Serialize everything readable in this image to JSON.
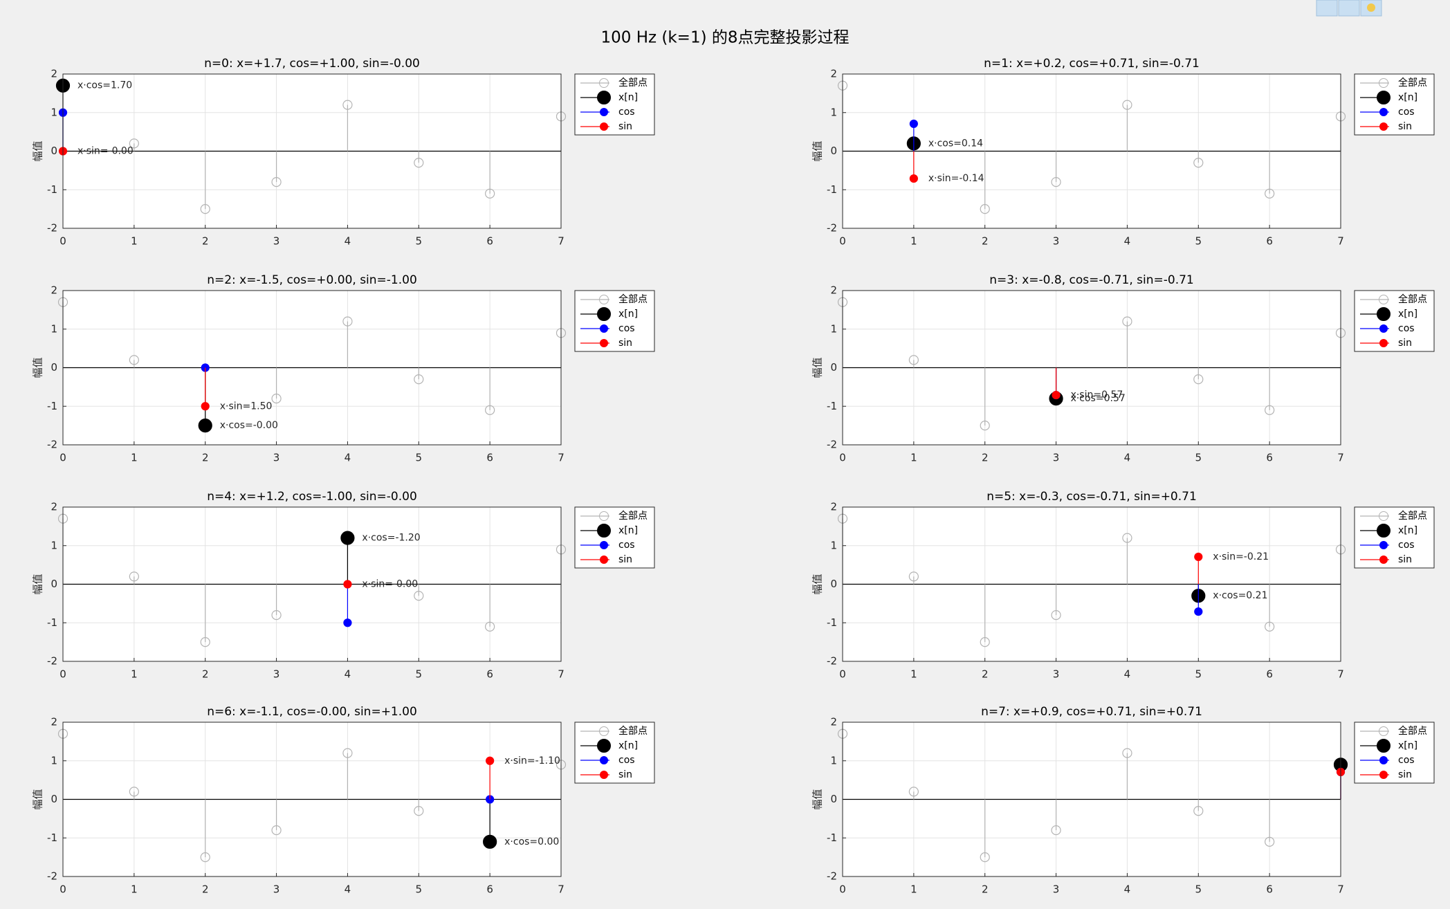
{
  "title": "100 Hz (k=1) 的8点完整投影过程",
  "chart_data": [
    {
      "type": "stem",
      "title": "n=0: x=+1.7, cos=+1.00, sin=-0.00",
      "ylabel": "幅值",
      "x": [
        0,
        1,
        2,
        3,
        4,
        5,
        6,
        7
      ],
      "xlim": [
        0,
        7
      ],
      "ylim": [
        -2,
        2
      ],
      "xticks": [
        0,
        1,
        2,
        3,
        4,
        5,
        6,
        7
      ],
      "yticks": [
        -2,
        -1,
        0,
        1,
        2
      ],
      "grid": true,
      "legend": "outside-right",
      "series": [
        {
          "name": "全部点",
          "color": "#b3b3b3",
          "values": [
            1.7,
            0.2,
            -1.5,
            -0.8,
            1.2,
            -0.3,
            -1.1,
            0.9
          ]
        },
        {
          "name": "x[n]",
          "color": "#000000",
          "values": [
            1.7,
            null,
            null,
            null,
            null,
            null,
            null,
            null
          ]
        },
        {
          "name": "cos",
          "color": "#0000ff",
          "values": [
            1,
            null,
            null,
            null,
            null,
            null,
            null,
            null
          ]
        },
        {
          "name": "sin",
          "color": "#ff0000",
          "values": [
            0,
            null,
            null,
            null,
            null,
            null,
            null,
            null
          ]
        }
      ],
      "cos_label": "x·cos=1.70",
      "sin_label": "x·sin=-0.00"
    },
    {
      "type": "stem",
      "title": "n=1: x=+0.2, cos=+0.71, sin=-0.71",
      "ylabel": "幅值",
      "x": [
        0,
        1,
        2,
        3,
        4,
        5,
        6,
        7
      ],
      "xlim": [
        0,
        7
      ],
      "ylim": [
        -2,
        2
      ],
      "xticks": [
        0,
        1,
        2,
        3,
        4,
        5,
        6,
        7
      ],
      "yticks": [
        -2,
        -1,
        0,
        1,
        2
      ],
      "grid": true,
      "legend": "outside-right",
      "series": [
        {
          "name": "全部点",
          "color": "#b3b3b3",
          "values": [
            1.7,
            0.2,
            -1.5,
            -0.8,
            1.2,
            -0.3,
            -1.1,
            0.9
          ]
        },
        {
          "name": "x[n]",
          "color": "#000000",
          "values": [
            null,
            0.2,
            null,
            null,
            null,
            null,
            null,
            null
          ]
        },
        {
          "name": "cos",
          "color": "#0000ff",
          "values": [
            null,
            0.71,
            null,
            null,
            null,
            null,
            null,
            null
          ]
        },
        {
          "name": "sin",
          "color": "#ff0000",
          "values": [
            null,
            -0.71,
            null,
            null,
            null,
            null,
            null,
            null
          ]
        }
      ],
      "cos_label": "x·cos=0.14",
      "sin_label": "x·sin=-0.14"
    },
    {
      "type": "stem",
      "title": "n=2: x=-1.5, cos=+0.00, sin=-1.00",
      "ylabel": "幅值",
      "x": [
        0,
        1,
        2,
        3,
        4,
        5,
        6,
        7
      ],
      "xlim": [
        0,
        7
      ],
      "ylim": [
        -2,
        2
      ],
      "xticks": [
        0,
        1,
        2,
        3,
        4,
        5,
        6,
        7
      ],
      "yticks": [
        -2,
        -1,
        0,
        1,
        2
      ],
      "grid": true,
      "legend": "outside-right",
      "series": [
        {
          "name": "全部点",
          "color": "#b3b3b3",
          "values": [
            1.7,
            0.2,
            -1.5,
            -0.8,
            1.2,
            -0.3,
            -1.1,
            0.9
          ]
        },
        {
          "name": "x[n]",
          "color": "#000000",
          "values": [
            null,
            null,
            -1.5,
            null,
            null,
            null,
            null,
            null
          ]
        },
        {
          "name": "cos",
          "color": "#0000ff",
          "values": [
            null,
            null,
            0,
            null,
            null,
            null,
            null,
            null
          ]
        },
        {
          "name": "sin",
          "color": "#ff0000",
          "values": [
            null,
            null,
            -1,
            null,
            null,
            null,
            null,
            null
          ]
        }
      ],
      "cos_label": "x·cos=-0.00",
      "sin_label": "x·sin=1.50"
    },
    {
      "type": "stem",
      "title": "n=3: x=-0.8, cos=-0.71, sin=-0.71",
      "ylabel": "幅值",
      "x": [
        0,
        1,
        2,
        3,
        4,
        5,
        6,
        7
      ],
      "xlim": [
        0,
        7
      ],
      "ylim": [
        -2,
        2
      ],
      "xticks": [
        0,
        1,
        2,
        3,
        4,
        5,
        6,
        7
      ],
      "yticks": [
        -2,
        -1,
        0,
        1,
        2
      ],
      "grid": true,
      "legend": "outside-right",
      "series": [
        {
          "name": "全部点",
          "color": "#b3b3b3",
          "values": [
            1.7,
            0.2,
            -1.5,
            -0.8,
            1.2,
            -0.3,
            -1.1,
            0.9
          ]
        },
        {
          "name": "x[n]",
          "color": "#000000",
          "values": [
            null,
            null,
            null,
            -0.8,
            null,
            null,
            null,
            null
          ]
        },
        {
          "name": "cos",
          "color": "#0000ff",
          "values": [
            null,
            null,
            null,
            -0.71,
            null,
            null,
            null,
            null
          ]
        },
        {
          "name": "sin",
          "color": "#ff0000",
          "values": [
            null,
            null,
            null,
            -0.71,
            null,
            null,
            null,
            null
          ]
        }
      ],
      "cos_label": "x·cos=0.57",
      "sin_label": "x·sin=0.57"
    },
    {
      "type": "stem",
      "title": "n=4: x=+1.2, cos=-1.00, sin=-0.00",
      "ylabel": "幅值",
      "x": [
        0,
        1,
        2,
        3,
        4,
        5,
        6,
        7
      ],
      "xlim": [
        0,
        7
      ],
      "ylim": [
        -2,
        2
      ],
      "xticks": [
        0,
        1,
        2,
        3,
        4,
        5,
        6,
        7
      ],
      "yticks": [
        -2,
        -1,
        0,
        1,
        2
      ],
      "grid": true,
      "legend": "outside-right",
      "series": [
        {
          "name": "全部点",
          "color": "#b3b3b3",
          "values": [
            1.7,
            0.2,
            -1.5,
            -0.8,
            1.2,
            -0.3,
            -1.1,
            0.9
          ]
        },
        {
          "name": "x[n]",
          "color": "#000000",
          "values": [
            null,
            null,
            null,
            null,
            1.2,
            null,
            null,
            null
          ]
        },
        {
          "name": "cos",
          "color": "#0000ff",
          "values": [
            null,
            null,
            null,
            null,
            -1,
            null,
            null,
            null
          ]
        },
        {
          "name": "sin",
          "color": "#ff0000",
          "values": [
            null,
            null,
            null,
            null,
            0,
            null,
            null,
            null
          ]
        }
      ],
      "cos_label": "x·cos=-1.20",
      "sin_label": "x·sin=-0.00"
    },
    {
      "type": "stem",
      "title": "n=5: x=-0.3, cos=-0.71, sin=+0.71",
      "ylabel": "幅值",
      "x": [
        0,
        1,
        2,
        3,
        4,
        5,
        6,
        7
      ],
      "xlim": [
        0,
        7
      ],
      "ylim": [
        -2,
        2
      ],
      "xticks": [
        0,
        1,
        2,
        3,
        4,
        5,
        6,
        7
      ],
      "yticks": [
        -2,
        -1,
        0,
        1,
        2
      ],
      "grid": true,
      "legend": "outside-right",
      "series": [
        {
          "name": "全部点",
          "color": "#b3b3b3",
          "values": [
            1.7,
            0.2,
            -1.5,
            -0.8,
            1.2,
            -0.3,
            -1.1,
            0.9
          ]
        },
        {
          "name": "x[n]",
          "color": "#000000",
          "values": [
            null,
            null,
            null,
            null,
            null,
            -0.3,
            null,
            null
          ]
        },
        {
          "name": "cos",
          "color": "#0000ff",
          "values": [
            null,
            null,
            null,
            null,
            null,
            -0.71,
            null,
            null
          ]
        },
        {
          "name": "sin",
          "color": "#ff0000",
          "values": [
            null,
            null,
            null,
            null,
            null,
            0.71,
            null,
            null
          ]
        }
      ],
      "cos_label": "x·cos=0.21",
      "sin_label": "x·sin=-0.21"
    },
    {
      "type": "stem",
      "title": "n=6: x=-1.1, cos=-0.00, sin=+1.00",
      "ylabel": "幅值",
      "x": [
        0,
        1,
        2,
        3,
        4,
        5,
        6,
        7
      ],
      "xlim": [
        0,
        7
      ],
      "ylim": [
        -2,
        2
      ],
      "xticks": [
        0,
        1,
        2,
        3,
        4,
        5,
        6,
        7
      ],
      "yticks": [
        -2,
        -1,
        0,
        1,
        2
      ],
      "grid": true,
      "legend": "outside-right",
      "series": [
        {
          "name": "全部点",
          "color": "#b3b3b3",
          "values": [
            1.7,
            0.2,
            -1.5,
            -0.8,
            1.2,
            -0.3,
            -1.1,
            0.9
          ]
        },
        {
          "name": "x[n]",
          "color": "#000000",
          "values": [
            null,
            null,
            null,
            null,
            null,
            null,
            -1.1,
            null
          ]
        },
        {
          "name": "cos",
          "color": "#0000ff",
          "values": [
            null,
            null,
            null,
            null,
            null,
            null,
            0,
            null
          ]
        },
        {
          "name": "sin",
          "color": "#ff0000",
          "values": [
            null,
            null,
            null,
            null,
            null,
            null,
            1,
            null
          ]
        }
      ],
      "cos_label": "x·cos=0.00",
      "sin_label": "x·sin=-1.10"
    },
    {
      "type": "stem",
      "title": "n=7: x=+0.9, cos=+0.71, sin=+0.71",
      "ylabel": "幅值",
      "x": [
        0,
        1,
        2,
        3,
        4,
        5,
        6,
        7
      ],
      "xlim": [
        0,
        7
      ],
      "ylim": [
        -2,
        2
      ],
      "xticks": [
        0,
        1,
        2,
        3,
        4,
        5,
        6,
        7
      ],
      "yticks": [
        -2,
        -1,
        0,
        1,
        2
      ],
      "grid": true,
      "legend": "outside-right",
      "series": [
        {
          "name": "全部点",
          "color": "#b3b3b3",
          "values": [
            1.7,
            0.2,
            -1.5,
            -0.8,
            1.2,
            -0.3,
            -1.1,
            0.9
          ]
        },
        {
          "name": "x[n]",
          "color": "#000000",
          "values": [
            null,
            null,
            null,
            null,
            null,
            null,
            null,
            0.9
          ]
        },
        {
          "name": "cos",
          "color": "#0000ff",
          "values": [
            null,
            null,
            null,
            null,
            null,
            null,
            null,
            0.71
          ]
        },
        {
          "name": "sin",
          "color": "#ff0000",
          "values": [
            null,
            null,
            null,
            null,
            null,
            null,
            null,
            0.71
          ]
        }
      ]
    }
  ]
}
